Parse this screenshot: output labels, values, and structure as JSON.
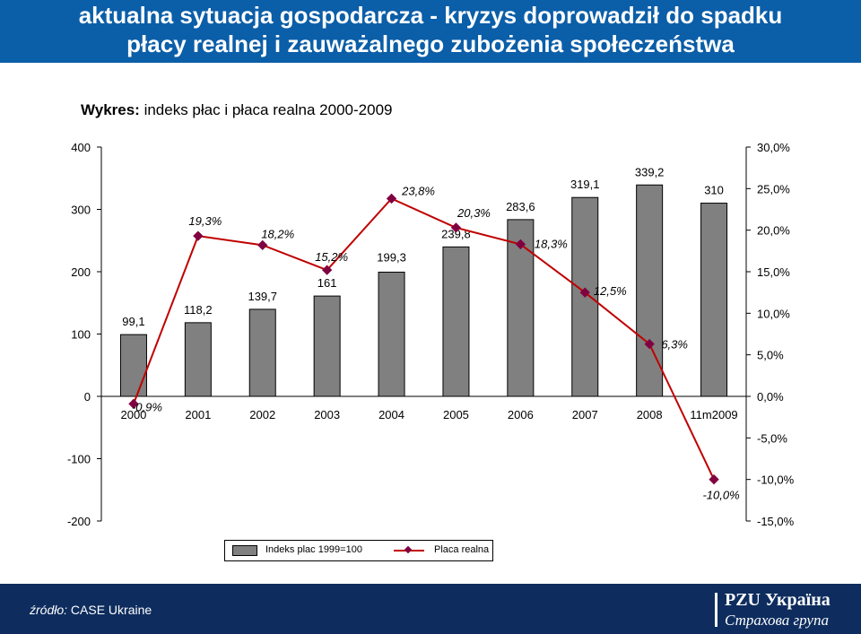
{
  "header": {
    "line1": "aktualna sytuacja gospodarcza - kryzys doprowadził do spadku",
    "line2": "płacy realnej i zauważalnego zubożenia społeczeństwa"
  },
  "subtitle": {
    "bold": "Wykres:",
    "text": " indeks płac i płaca realna 2000-2009"
  },
  "chart_data": {
    "type": "bar",
    "title": "Wykres: indeks płac i płaca realna 2000-2009",
    "categories": [
      "2000",
      "2001",
      "2002",
      "2003",
      "2004",
      "2005",
      "2006",
      "2007",
      "2008",
      "11m2009"
    ],
    "series": [
      {
        "name": "Indeks plac 1999=100",
        "type": "bar",
        "axis": "left",
        "values": [
          99.1,
          118.2,
          139.7,
          161,
          199.3,
          239.8,
          283.6,
          319.1,
          339.2,
          310
        ],
        "labels": [
          "99,1",
          "118,2",
          "139,7",
          "161",
          "199,3",
          "239,8",
          "283,6",
          "319,1",
          "339,2",
          "310"
        ]
      },
      {
        "name": "Placa realna",
        "type": "line",
        "axis": "right",
        "values": [
          -0.9,
          19.3,
          18.2,
          15.2,
          23.8,
          20.3,
          18.3,
          12.5,
          6.3,
          -10.0
        ],
        "labels": [
          "-0,9%",
          "19,3%",
          "18,2%",
          "15,2%",
          "23,8%",
          "20,3%",
          "18,3%",
          "12,5%",
          "6,3%",
          "-10,0%"
        ]
      }
    ],
    "y_left": {
      "min": -200,
      "max": 400,
      "ticks": [
        "-200",
        "-100",
        "0",
        "100",
        "200",
        "300",
        "400"
      ]
    },
    "y_right": {
      "min": -15,
      "max": 30,
      "ticks": [
        "-15,0%",
        "-10,0%",
        "-5,0%",
        "0,0%",
        "5,0%",
        "10,0%",
        "15,0%",
        "20,0%",
        "25,0%",
        "30,0%"
      ]
    },
    "grid": false,
    "legend_position": "bottom",
    "colors": {
      "bar": "#808080",
      "line": "#c00000",
      "marker": "#800040"
    }
  },
  "legend": {
    "bar_label": "Indeks plac 1999=100",
    "line_label": "Placa realna"
  },
  "footer": {
    "source_label": "źródło:",
    "source_value": "  CASE Ukraine",
    "logo_line1": "PZU Україна",
    "logo_line2": "Страхова група"
  }
}
